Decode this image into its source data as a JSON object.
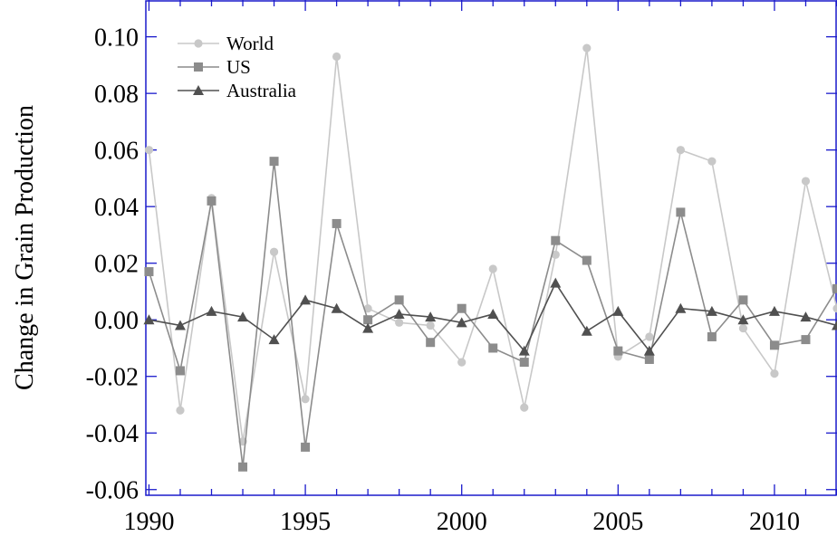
{
  "chart_data": {
    "type": "line",
    "xlabel": "",
    "ylabel": "Change in Grain Production",
    "xlim": [
      1989.9,
      2012
    ],
    "ylim": [
      -0.062,
      0.113
    ],
    "x_ticks": [
      1990,
      1995,
      2000,
      2005,
      2010
    ],
    "x_tick_labels": [
      "1990",
      "1995",
      "2000",
      "2005",
      "2010"
    ],
    "y_ticks": [
      -0.06,
      -0.04,
      -0.02,
      0.0,
      0.02,
      0.04,
      0.06,
      0.08,
      0.1
    ],
    "y_tick_labels": [
      "-0.06",
      "-0.04",
      "-0.02",
      "0.00",
      "0.02",
      "0.04",
      "0.06",
      "0.08",
      "0.10"
    ],
    "grid": false,
    "legend_position": "top-left",
    "x": [
      1990,
      1991,
      1992,
      1993,
      1994,
      1995,
      1996,
      1997,
      1998,
      1999,
      2000,
      2001,
      2002,
      2003,
      2004,
      2005,
      2006,
      2007,
      2008,
      2009,
      2010,
      2011,
      2012
    ],
    "series": [
      {
        "name": "World",
        "color": "#c8c8c8",
        "marker": "circle",
        "values": [
          0.06,
          -0.032,
          0.043,
          -0.043,
          0.024,
          -0.028,
          0.093,
          0.004,
          -0.001,
          -0.002,
          -0.015,
          0.018,
          -0.031,
          0.023,
          0.096,
          -0.013,
          -0.006,
          0.06,
          0.056,
          -0.003,
          -0.019,
          0.049,
          0.004
        ]
      },
      {
        "name": "US",
        "color": "#8c8c8c",
        "marker": "square",
        "values": [
          0.017,
          -0.018,
          0.042,
          -0.052,
          0.056,
          -0.045,
          0.034,
          0.0,
          0.007,
          -0.008,
          0.004,
          -0.01,
          -0.015,
          0.028,
          0.021,
          -0.011,
          -0.014,
          0.038,
          -0.006,
          0.007,
          -0.009,
          -0.007,
          0.011
        ]
      },
      {
        "name": "Australia",
        "color": "#505050",
        "marker": "triangle",
        "values": [
          0.0,
          -0.002,
          0.003,
          0.001,
          -0.007,
          0.007,
          0.004,
          -0.003,
          0.002,
          0.001,
          -0.001,
          0.002,
          -0.011,
          0.013,
          -0.004,
          0.003,
          -0.011,
          0.004,
          0.003,
          0.0,
          0.003,
          0.001,
          -0.002
        ]
      }
    ]
  }
}
